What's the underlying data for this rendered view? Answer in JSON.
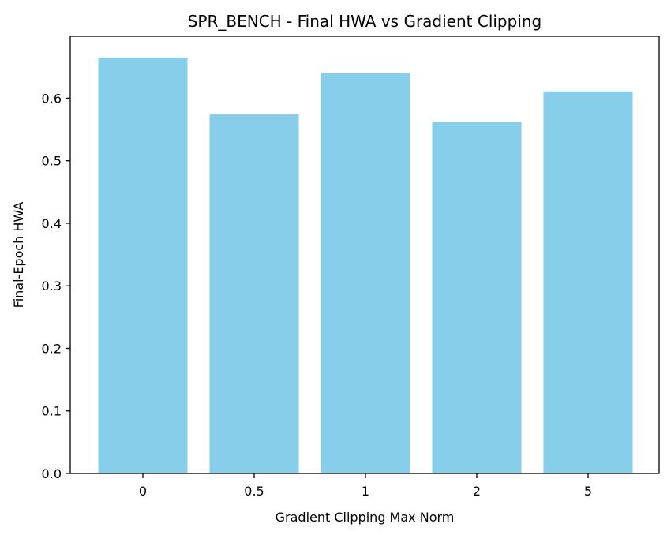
{
  "chart_data": {
    "type": "bar",
    "title": "SPR_BENCH - Final HWA vs Gradient Clipping",
    "xlabel": "Gradient Clipping Max Norm",
    "ylabel": "Final-Epoch HWA",
    "categories": [
      "0",
      "0.5",
      "1",
      "2",
      "5"
    ],
    "values": [
      0.665,
      0.574,
      0.64,
      0.562,
      0.611
    ],
    "ylim": [
      0,
      0.699
    ],
    "yticks": [
      "0.0",
      "0.1",
      "0.2",
      "0.3",
      "0.4",
      "0.5",
      "0.6"
    ],
    "bar_color": "#87CEEB",
    "grid": false
  }
}
